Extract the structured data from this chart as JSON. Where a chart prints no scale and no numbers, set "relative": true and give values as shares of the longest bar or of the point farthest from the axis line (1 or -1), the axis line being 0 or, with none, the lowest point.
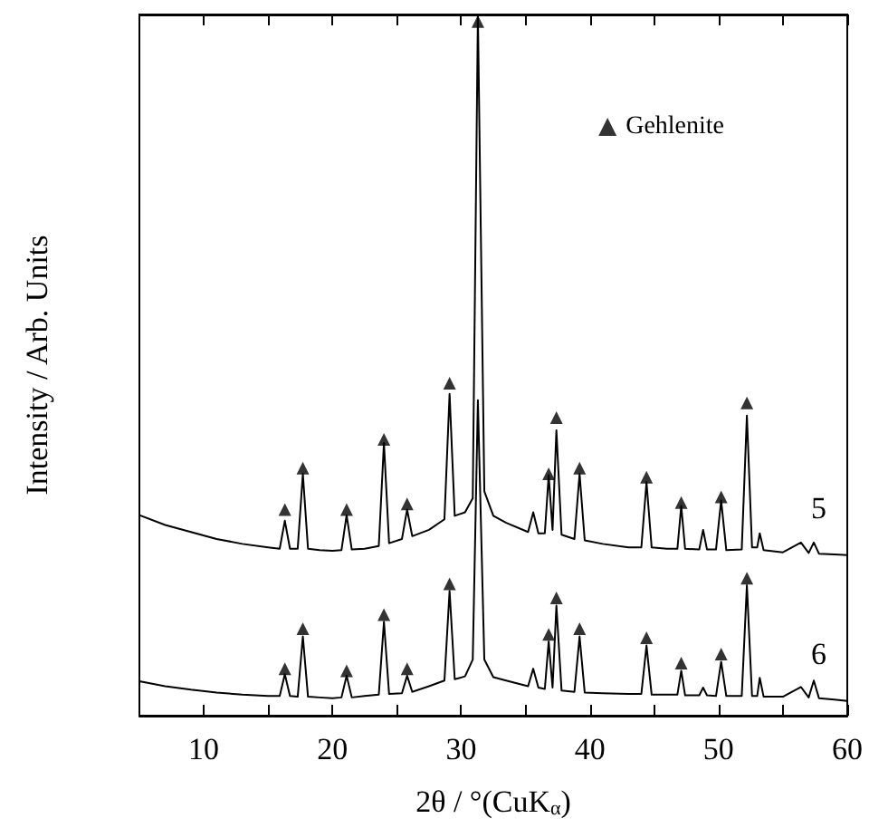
{
  "chart_data": {
    "type": "line",
    "relative": true,
    "xlabel": "2θ / °(CuK$_{α}$)",
    "ylabel": "Intensity / Arb. Units",
    "xlim": [
      5,
      60
    ],
    "xticks": [
      10,
      {
        "value": 15,
        "label": null
      },
      20,
      {
        "value": 25,
        "label": null
      },
      30,
      {
        "value": 35,
        "label": null
      },
      40,
      {
        "value": 45,
        "label": null
      },
      50,
      {
        "value": 55,
        "label": null
      },
      60
    ],
    "x": [
      5,
      7,
      9,
      11,
      13,
      15,
      15.9,
      16.3,
      16.7,
      17.3,
      17.7,
      18.1,
      19,
      20,
      20.7,
      21.1,
      21.5,
      22.5,
      23.6,
      24.0,
      24.4,
      25.4,
      25.8,
      26.2,
      27.5,
      28.7,
      29.1,
      29.5,
      30.3,
      30.9,
      31.3,
      31.8,
      32.5,
      33.5,
      35.2,
      35.6,
      36.0,
      36.5,
      36.8,
      37.1,
      37.4,
      37.8,
      38.8,
      39.2,
      39.6,
      41,
      43,
      44.0,
      44.4,
      44.8,
      46,
      46.8,
      47.1,
      47.4,
      48.5,
      48.8,
      49.1,
      49.8,
      50.2,
      50.6,
      51.8,
      52.2,
      52.6,
      53.0,
      53.2,
      53.5,
      55,
      56.4,
      57.0,
      57.4,
      57.8,
      59,
      60
    ],
    "legend": "top right",
    "marker": "none",
    "grid": false,
    "series": [
      {
        "name": "5",
        "color": "#000000",
        "values": [
          0.286,
          0.272,
          0.262,
          0.252,
          0.245,
          0.24,
          0.238,
          0.278,
          0.238,
          0.238,
          0.345,
          0.238,
          0.236,
          0.235,
          0.236,
          0.286,
          0.237,
          0.238,
          0.242,
          0.389,
          0.246,
          0.252,
          0.294,
          0.256,
          0.265,
          0.28,
          0.459,
          0.285,
          0.29,
          0.31,
          1.0,
          0.32,
          0.285,
          0.275,
          0.262,
          0.29,
          0.26,
          0.26,
          0.343,
          0.265,
          0.407,
          0.258,
          0.252,
          0.345,
          0.25,
          0.245,
          0.24,
          0.24,
          0.333,
          0.24,
          0.238,
          0.238,
          0.299,
          0.238,
          0.237,
          0.265,
          0.237,
          0.237,
          0.307,
          0.236,
          0.237,
          0.428,
          0.24,
          0.24,
          0.26,
          0.236,
          0.233,
          0.247,
          0.232,
          0.247,
          0.231,
          0.23,
          0.229
        ]
      },
      {
        "name": "6",
        "color": "#000000",
        "values": [
          0.049,
          0.042,
          0.037,
          0.033,
          0.03,
          0.028,
          0.028,
          0.059,
          0.028,
          0.027,
          0.113,
          0.027,
          0.026,
          0.025,
          0.026,
          0.057,
          0.026,
          0.028,
          0.03,
          0.134,
          0.031,
          0.032,
          0.057,
          0.034,
          0.042,
          0.05,
          0.178,
          0.052,
          0.056,
          0.08,
          0.45,
          0.08,
          0.055,
          0.05,
          0.042,
          0.067,
          0.04,
          0.038,
          0.106,
          0.04,
          0.157,
          0.036,
          0.034,
          0.113,
          0.033,
          0.032,
          0.031,
          0.031,
          0.1,
          0.03,
          0.03,
          0.03,
          0.064,
          0.029,
          0.029,
          0.04,
          0.029,
          0.028,
          0.077,
          0.028,
          0.028,
          0.186,
          0.028,
          0.028,
          0.054,
          0.027,
          0.027,
          0.041,
          0.026,
          0.05,
          0.025,
          0.023,
          0.021
        ]
      },
      {
        "name": "Gehlenite",
        "type": "scatter",
        "marker": "triangle",
        "color": "#000000",
        "x": [
          16.3,
          17.7,
          21.1,
          24.0,
          25.8,
          29.1,
          31.3,
          36.8,
          37.4,
          39.2,
          44.4,
          47.1,
          50.2,
          52.2,
          16.3,
          17.7,
          21.1,
          24.0,
          25.8,
          29.1,
          36.8,
          37.4,
          39.2,
          44.4,
          47.1,
          50.2,
          52.2
        ],
        "values": [
          0.294,
          0.353,
          0.294,
          0.394,
          0.302,
          0.474,
          0.99,
          0.345,
          0.425,
          0.353,
          0.34,
          0.304,
          0.312,
          0.446,
          0.067,
          0.124,
          0.064,
          0.144,
          0.067,
          0.188,
          0.116,
          0.168,
          0.124,
          0.111,
          0.075,
          0.088,
          0.196
        ]
      }
    ]
  }
}
